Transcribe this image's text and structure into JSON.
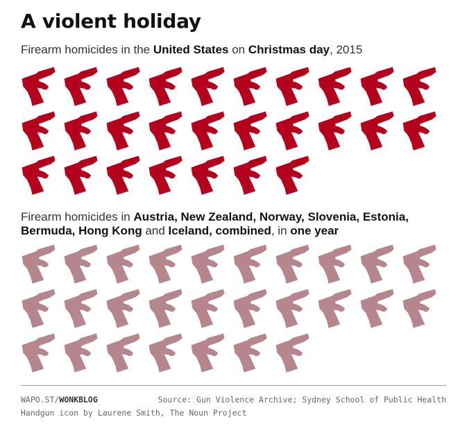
{
  "title": "A violent holiday",
  "chart_data": [
    {
      "type": "pictogram",
      "subtitle_parts": [
        {
          "text": "Firearm homicides in the ",
          "bold": false
        },
        {
          "text": "United States",
          "bold": true
        },
        {
          "text": " on ",
          "bold": false
        },
        {
          "text": "Christmas day",
          "bold": true
        },
        {
          "text": ", 2015",
          "bold": false
        }
      ],
      "value": 27,
      "per_row": 10,
      "color": "#b5001d"
    },
    {
      "type": "pictogram",
      "subtitle_parts": [
        {
          "text": "Firearm homicides in ",
          "bold": false
        },
        {
          "text": "Austria, New Zealand, Norway, Slovenia, Estonia, Bermuda, Hong Kong",
          "bold": true
        },
        {
          "text": " and ",
          "bold": false
        },
        {
          "text": "Iceland, combined",
          "bold": true
        },
        {
          "text": ", in ",
          "bold": false
        },
        {
          "text": "one year",
          "bold": true
        }
      ],
      "value": 27,
      "per_row": 10,
      "color": "#b6868f"
    }
  ],
  "footer": {
    "site": "WAPO.ST/",
    "section": "WONKBLOG",
    "source": "Source: Gun Violence Archive; Sydney School of Public Health",
    "credit": "Handgun icon by Laurene Smith, The Noun Project"
  },
  "icons": {
    "mark": "handgun-icon"
  }
}
